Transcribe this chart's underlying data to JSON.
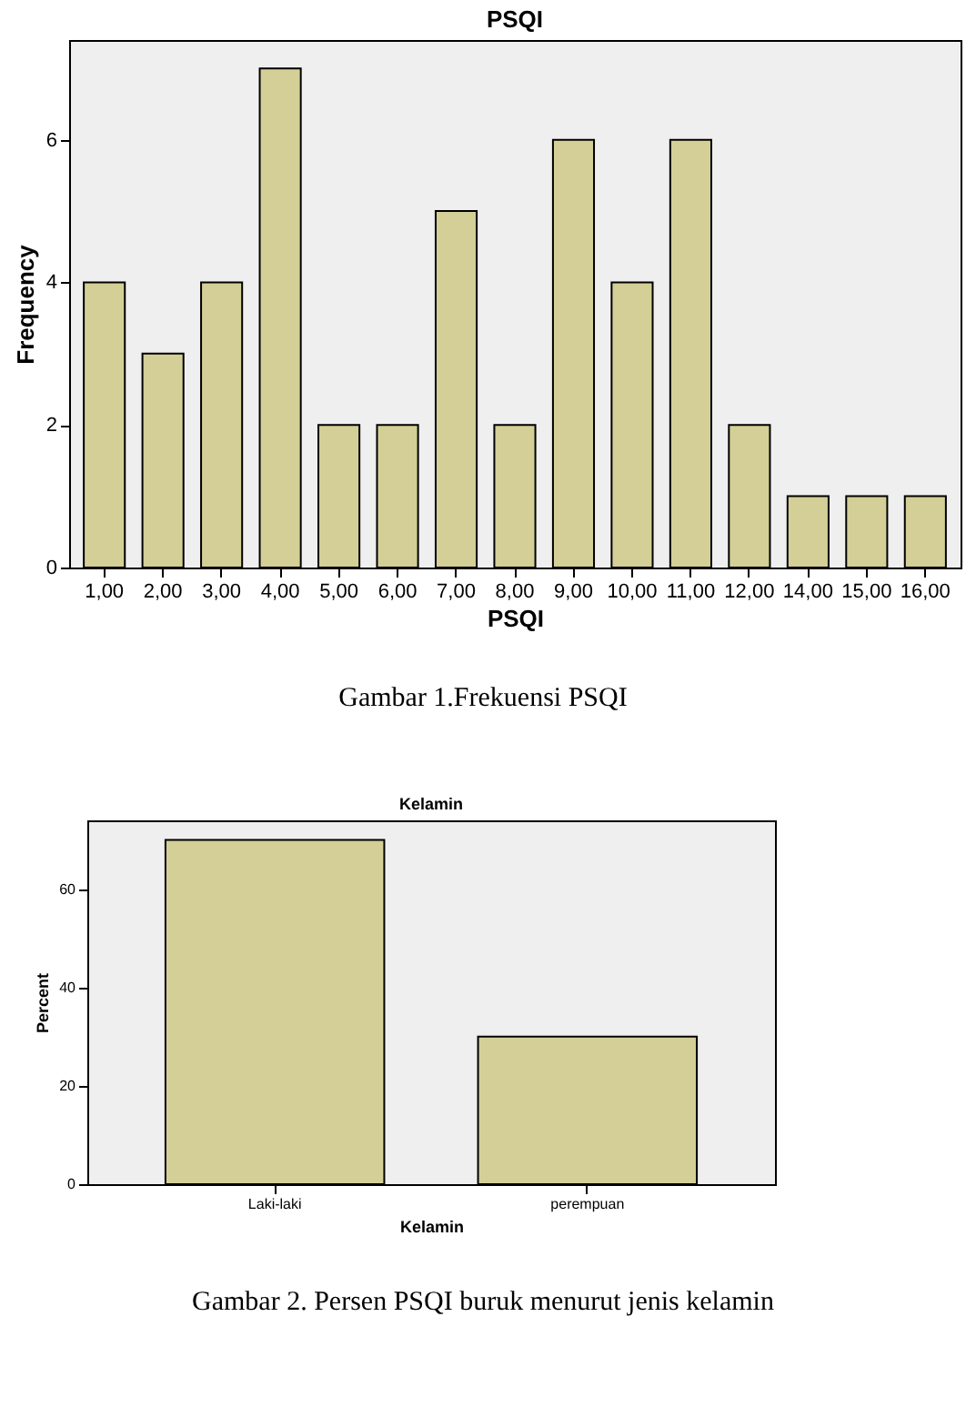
{
  "chart_data": [
    {
      "type": "bar",
      "title": "PSQI",
      "xlabel": "PSQI",
      "ylabel": "Frequency",
      "categories": [
        "1,00",
        "2,00",
        "3,00",
        "4,00",
        "5,00",
        "6,00",
        "7,00",
        "8,00",
        "9,00",
        "10,00",
        "11,00",
        "12,00",
        "14,00",
        "15,00",
        "16,00"
      ],
      "values": [
        4,
        3,
        4,
        7,
        2,
        2,
        5,
        2,
        6,
        4,
        6,
        2,
        1,
        1,
        1
      ],
      "color": "#d3cf96",
      "ylim": [
        0,
        7.4
      ],
      "yticks": [
        0,
        2,
        4,
        6
      ],
      "annotations": [
        "Gambar 1.Frekuensi PSQI"
      ]
    },
    {
      "type": "bar",
      "title": "Kelamin",
      "xlabel": "Kelamin",
      "ylabel": "Percent",
      "categories": [
        "Laki-laki",
        "perempuan"
      ],
      "values": [
        70,
        30
      ],
      "color": "#d3cf96",
      "ylim": [
        0,
        74
      ],
      "yticks": [
        0,
        20,
        40,
        60
      ],
      "annotations": [
        "Gambar 2. Persen PSQI buruk menurut jenis kelamin"
      ]
    }
  ]
}
